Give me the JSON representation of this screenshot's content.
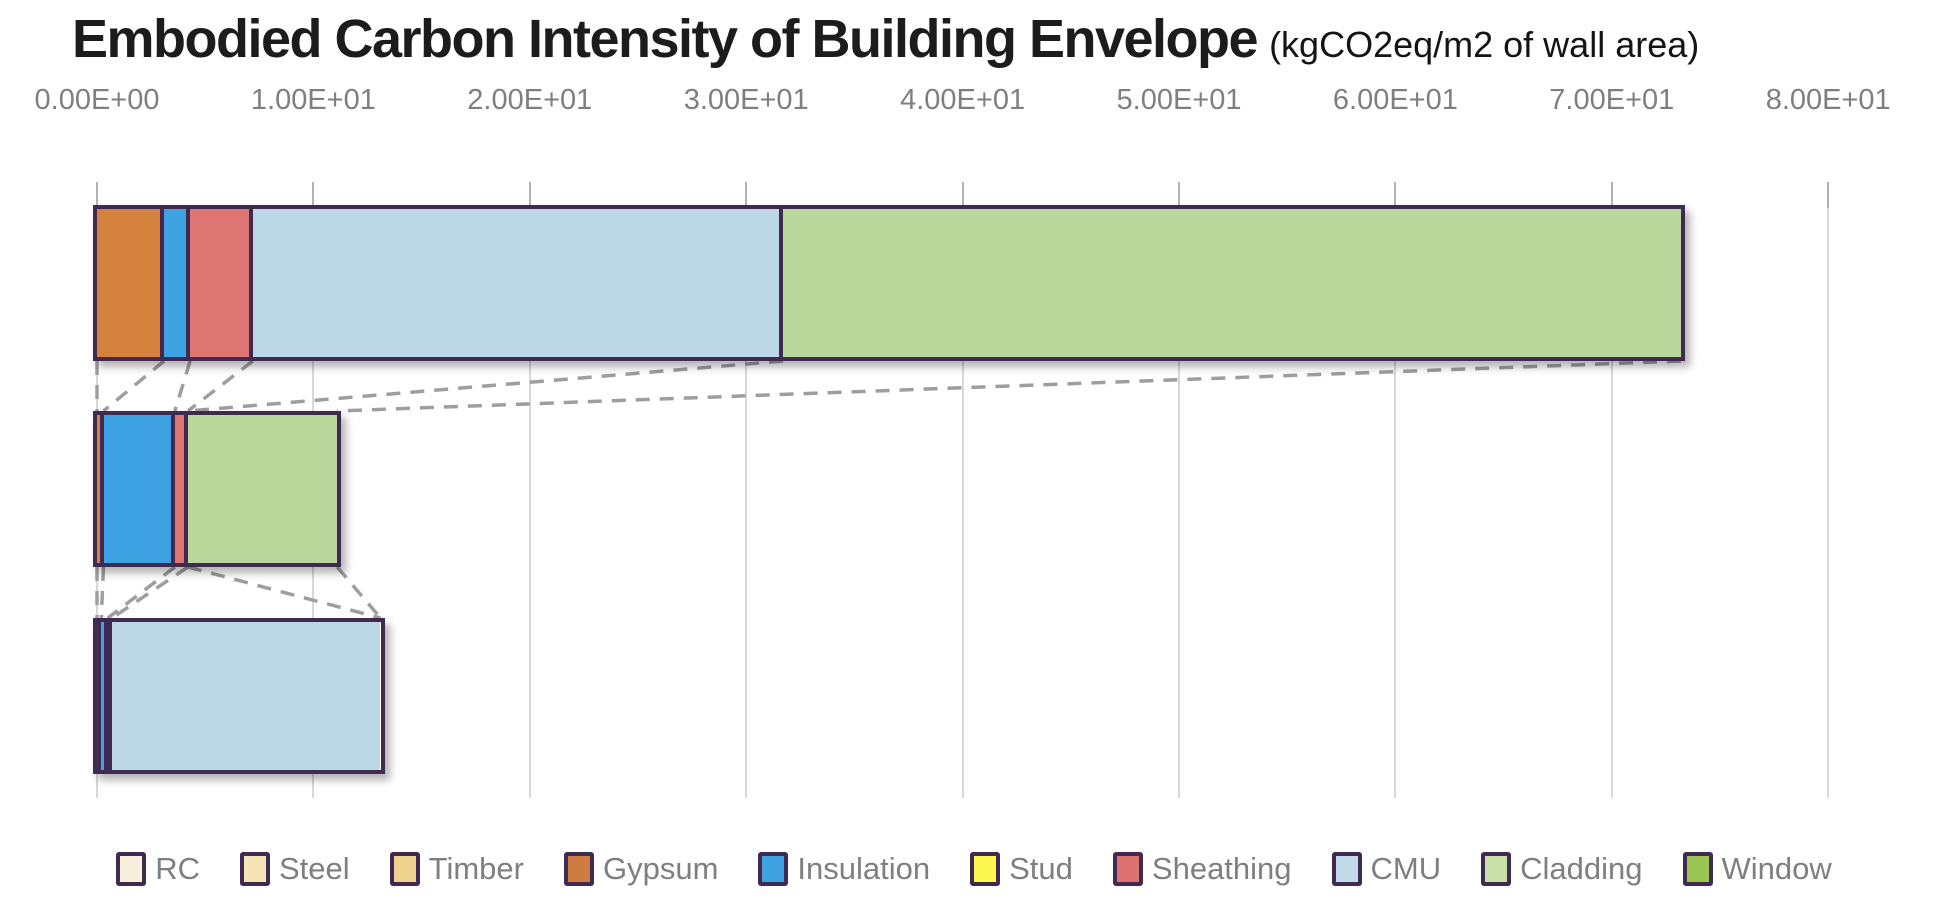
{
  "header": {
    "title": "Embodied Carbon Intensity of Building Envelope",
    "subtitle": "(kgCO2eq/m2 of wall area)"
  },
  "colors": {
    "bar_border": "#412a52",
    "gridline": "#d8d8d8",
    "tick_stub": "#b3b3b3",
    "connector": "#9e9e9e",
    "tick_label_text": "#7f7f7f",
    "legend_text": "#7f7f7f",
    "title_text": "#1c1c1c"
  },
  "legend": {
    "items": [
      {
        "label": "RC",
        "color": "#f7eedd"
      },
      {
        "label": "Steel",
        "color": "#f4e4b6"
      },
      {
        "label": "Timber",
        "color": "#eed28f"
      },
      {
        "label": "Gypsum",
        "color": "#cf7c42"
      },
      {
        "label": "Insulation",
        "color": "#3fa2e2"
      },
      {
        "label": "Stud",
        "color": "#fbf74f"
      },
      {
        "label": "Sheathing",
        "color": "#dc726f"
      },
      {
        "label": "CMU",
        "color": "#c1dbe9"
      },
      {
        "label": "Cladding",
        "color": "#c8e1a8"
      },
      {
        "label": "Window",
        "color": "#9cc653"
      }
    ]
  },
  "chart_data": {
    "type": "bar",
    "orientation": "horizontal",
    "stacked": true,
    "title": "Embodied Carbon Intensity of Building Envelope",
    "units_label": "(kgCO2eq/m2 of wall area)",
    "xlabel": "",
    "ylabel": "",
    "xlim": [
      0,
      80
    ],
    "grid": true,
    "legend_position": "bottom",
    "tick_values": [
      0,
      10,
      20,
      30,
      40,
      50,
      60,
      70,
      80
    ],
    "tick_labels": [
      "0.00E+00",
      "1.00E+01",
      "2.00E+01",
      "3.00E+01",
      "4.00E+01",
      "5.00E+01",
      "6.00E+01",
      "7.00E+01",
      "8.00E+01"
    ],
    "categories": [
      "",
      "",
      ""
    ],
    "series": [
      {
        "name": "RC",
        "color": "#f7eedd",
        "values": [
          0,
          0,
          0
        ]
      },
      {
        "name": "Steel",
        "color": "#f4e4b6",
        "values": [
          0,
          0,
          0
        ]
      },
      {
        "name": "Timber",
        "color": "#eed28f",
        "values": [
          0,
          0,
          0
        ]
      },
      {
        "name": "Gypsum",
        "color": "#d5823f",
        "values": [
          3.1,
          0.3,
          0.2
        ]
      },
      {
        "name": "Insulation",
        "color": "#3fa2e2",
        "values": [
          1.2,
          3.3,
          0.3
        ]
      },
      {
        "name": "Stud",
        "color": "#fbf74f",
        "values": [
          0,
          0,
          0
        ]
      },
      {
        "name": "Sheathing",
        "color": "#dd7572",
        "values": [
          2.9,
          0.6,
          0.2
        ]
      },
      {
        "name": "CMU",
        "color": "#bcd8e7",
        "values": [
          24.5,
          0,
          12.4
        ]
      },
      {
        "name": "Cladding",
        "color": "#bad89b",
        "values": [
          41.5,
          6.9,
          0
        ]
      },
      {
        "name": "Window",
        "color": "#9cc653",
        "values": [
          0,
          0,
          0
        ]
      }
    ],
    "totals": [
      73.2,
      11.1,
      13.1
    ],
    "connectors": [
      {
        "gap": 0,
        "from_value": 0,
        "to_value": 0
      },
      {
        "gap": 0,
        "from_value": 3.1,
        "to_value": 0.3
      },
      {
        "gap": 0,
        "from_value": 4.3,
        "to_value": 3.6
      },
      {
        "gap": 0,
        "from_value": 7.2,
        "to_value": 4.2
      },
      {
        "gap": 0,
        "from_value": 31.7,
        "to_value": 4.2
      },
      {
        "gap": 0,
        "from_value": 73.2,
        "to_value": 11.1
      },
      {
        "gap": 1,
        "from_value": 0,
        "to_value": 0
      },
      {
        "gap": 1,
        "from_value": 0.3,
        "to_value": 0.2
      },
      {
        "gap": 1,
        "from_value": 3.6,
        "to_value": 0.5
      },
      {
        "gap": 1,
        "from_value": 4.2,
        "to_value": 0.7
      },
      {
        "gap": 1,
        "from_value": 4.2,
        "to_value": 13.1
      },
      {
        "gap": 1,
        "from_value": 11.1,
        "to_value": 13.1
      }
    ]
  }
}
